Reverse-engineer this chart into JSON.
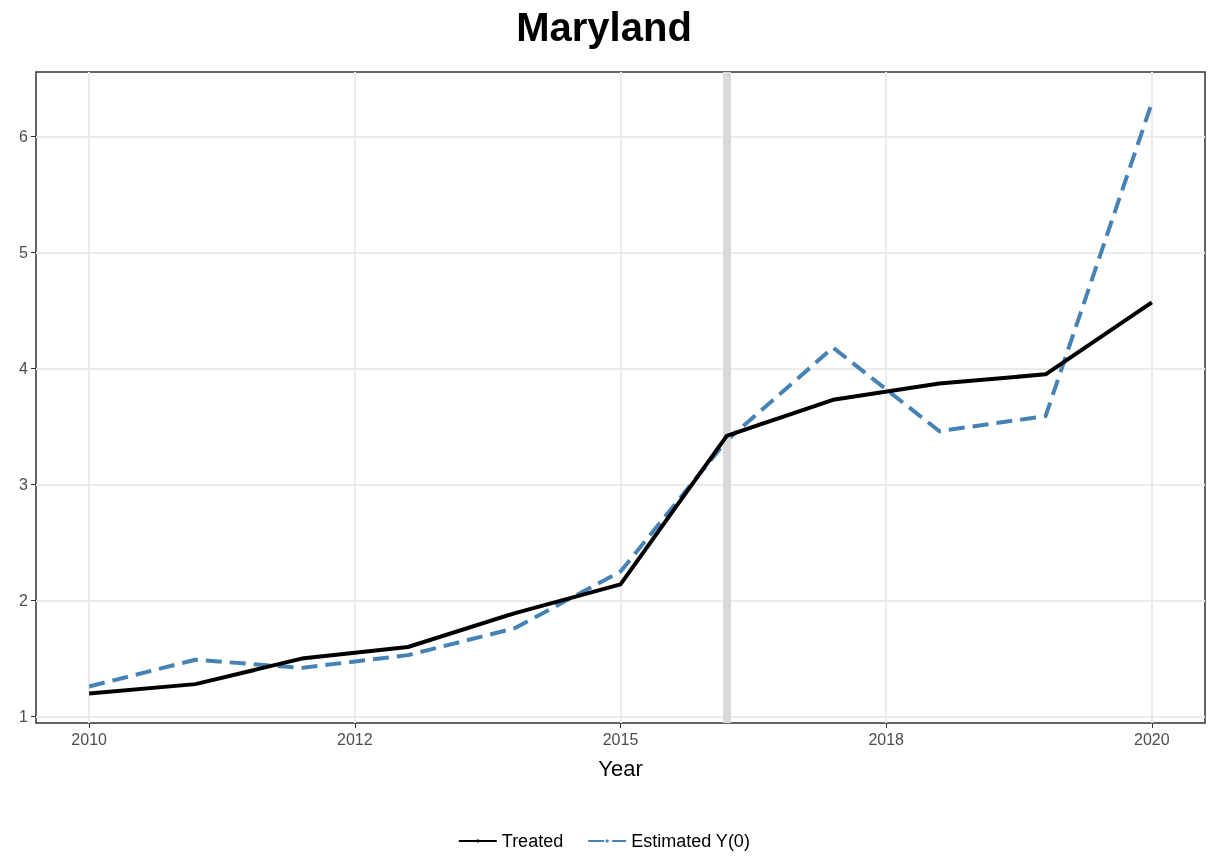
{
  "chart_data": {
    "type": "line",
    "title": "Maryland",
    "xlabel": "Year",
    "x": [
      2010,
      2011,
      2012,
      2013,
      2014,
      2015,
      2016,
      2017,
      2018,
      2019,
      2020
    ],
    "series": [
      {
        "name": "Treated",
        "color": "#000000",
        "line_style": "solid",
        "values": [
          1.2,
          1.28,
          1.5,
          1.6,
          1.89,
          2.14,
          3.42,
          3.73,
          3.87,
          3.95,
          4.57
        ]
      },
      {
        "name": "Estimated Y(0)",
        "color": "#4682b4",
        "line_style": "dashed",
        "values": [
          1.26,
          1.49,
          1.42,
          1.53,
          1.76,
          2.25,
          3.38,
          4.18,
          3.46,
          3.59,
          6.29
        ]
      }
    ],
    "xlim": [
      2009.5,
      2020.5
    ],
    "xticks": [
      2010,
      {
        "value": 2012.5,
        "label": "2012"
      },
      2015,
      {
        "value": 2017.5,
        "label": "2018"
      },
      2020
    ],
    "ylim": [
      0.945,
      6.555
    ],
    "yticks": [
      1,
      2,
      3,
      4,
      5,
      6
    ],
    "ref_lines": [
      {
        "axis": "x",
        "value": 2016,
        "color": "#d9d9d9"
      }
    ],
    "grid": true,
    "legend": "bottom",
    "marker": "none"
  }
}
